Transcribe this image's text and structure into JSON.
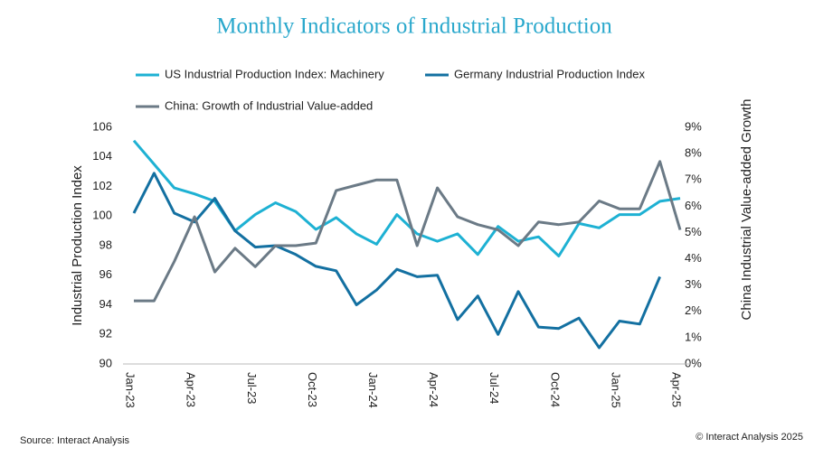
{
  "chart_data": {
    "type": "line",
    "title": "Monthly Indicators of Industrial Production",
    "ylabel": "Industrial Production Index",
    "y2label": "China Industrial Value-added Growth",
    "source": "Source: Interact Analysis",
    "copyright": "© Interact Analysis 2025",
    "categories": [
      "Jan-23",
      null,
      null,
      "Apr-23",
      null,
      null,
      "Jul-23",
      null,
      null,
      "Oct-23",
      null,
      null,
      "Jan-24",
      null,
      null,
      "Apr-24",
      null,
      null,
      "Jul-24",
      null,
      null,
      "Oct-24",
      null,
      null,
      "Jan-25",
      null,
      null,
      "Apr-25"
    ],
    "ylim": [
      90,
      106
    ],
    "yticks": [
      90,
      92,
      94,
      96,
      98,
      100,
      102,
      104,
      106
    ],
    "y2lim": [
      0,
      9
    ],
    "y2ticks": [
      {
        "value": 0,
        "label": "0%"
      },
      {
        "value": 1,
        "label": "1%"
      },
      {
        "value": 2,
        "label": "2%"
      },
      {
        "value": 3,
        "label": "3%"
      },
      {
        "value": 4,
        "label": "4%"
      },
      {
        "value": 5,
        "label": "5%"
      },
      {
        "value": 6,
        "label": "6%"
      },
      {
        "value": 7,
        "label": "7%"
      },
      {
        "value": 8,
        "label": "8%"
      },
      {
        "value": 9,
        "label": "9%"
      }
    ],
    "grid": false,
    "series": [
      {
        "name": "US Industrial Production Index: Machinery",
        "color": "#1eb1d3",
        "values": [
          105.1,
          103.5,
          101.9,
          101.5,
          101.0,
          99.0,
          100.1,
          100.9,
          100.3,
          99.1,
          99.9,
          98.8,
          98.1,
          100.1,
          98.8,
          98.3,
          98.8,
          97.4,
          99.3,
          98.3,
          98.6,
          97.3,
          99.5,
          99.2,
          100.1,
          100.1,
          101.0,
          101.2
        ]
      },
      {
        "name": "Germany Industrial Production Index",
        "color": "#1370a1",
        "values": [
          100.2,
          102.9,
          100.2,
          99.6,
          101.2,
          99.0,
          97.9,
          98.0,
          97.4,
          96.6,
          96.3,
          94.0,
          95.0,
          96.4,
          95.9,
          96.0,
          93.0,
          94.6,
          92.0,
          94.9,
          92.5,
          92.4,
          93.1,
          91.1,
          92.9,
          92.7,
          95.9,
          null
        ]
      },
      {
        "name": "China: Growth of Industrial Value-added",
        "color": "#6b7a86",
        "axis": "y2",
        "values": [
          2.4,
          2.4,
          3.9,
          5.6,
          3.5,
          4.4,
          3.7,
          4.5,
          4.5,
          4.6,
          6.6,
          6.8,
          7.0,
          7.0,
          4.5,
          6.7,
          5.6,
          5.3,
          5.1,
          4.5,
          5.4,
          5.3,
          5.4,
          6.2,
          5.9,
          5.9,
          7.7,
          5.1
        ]
      }
    ]
  }
}
